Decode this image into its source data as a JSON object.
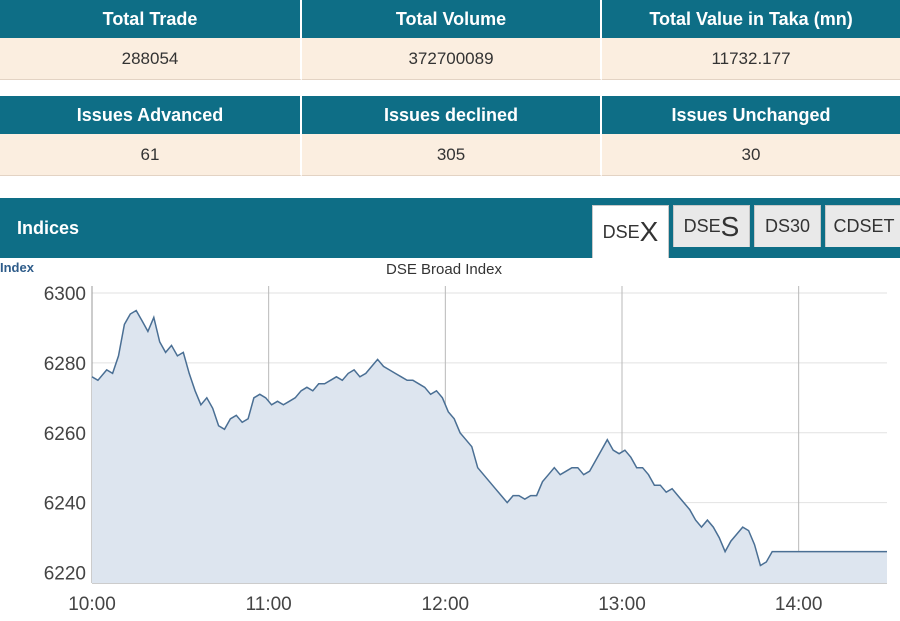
{
  "summary1": {
    "headers": [
      "Total Trade",
      "Total Volume",
      "Total Value in Taka (mn)"
    ],
    "values": [
      "288054",
      "372700089",
      "11732.177"
    ]
  },
  "summary2": {
    "headers": [
      "Issues Advanced",
      "Issues declined",
      "Issues Unchanged"
    ],
    "values": [
      "61",
      "305",
      "30"
    ]
  },
  "indices": {
    "title": "Indices",
    "tabs": [
      {
        "prefix": "DSE",
        "big": "X",
        "active": true
      },
      {
        "prefix": "DSE",
        "big": "S",
        "active": false
      },
      {
        "prefix": "DS30",
        "big": "",
        "active": false
      },
      {
        "prefix": "CDSET",
        "big": "",
        "active": false
      }
    ]
  },
  "colors": {
    "header_bg": "#0e6e86",
    "value_bg": "#fbeee0",
    "line": "#4a6f94",
    "area": "#dde5ef"
  },
  "chart_data": {
    "type": "area",
    "title": "DSE Broad Index",
    "ylabel": "Index",
    "ylim": [
      6217,
      6302
    ],
    "yticks": [
      6220,
      6240,
      6260,
      6280,
      6300
    ],
    "xlim": [
      600,
      870
    ],
    "xticks": [
      600,
      660,
      720,
      780,
      840
    ],
    "xtick_labels": [
      "10:00",
      "11:00",
      "12:00",
      "13:00",
      "14:00"
    ],
    "grid": true,
    "series": [
      {
        "x": [
          600,
          602,
          605,
          607,
          609,
          611,
          613,
          615,
          617,
          619,
          621,
          623,
          625,
          627,
          629,
          631,
          633,
          635,
          637,
          639,
          641,
          643,
          645,
          647,
          649,
          651,
          653,
          655,
          657,
          659,
          661,
          663,
          665,
          667,
          669,
          671,
          673,
          675,
          677,
          679,
          681,
          683,
          685,
          687,
          689,
          691,
          693,
          695,
          697,
          699,
          701,
          703,
          705,
          707,
          709,
          711,
          713,
          715,
          717,
          719,
          721,
          723,
          725,
          727,
          729,
          731,
          733,
          735,
          737,
          739,
          741,
          743,
          745,
          747,
          749,
          751,
          753,
          755,
          757,
          759,
          761,
          763,
          765,
          767,
          769,
          771,
          773,
          775,
          777,
          779,
          781,
          783,
          785,
          787,
          789,
          791,
          793,
          795,
          797,
          799,
          801,
          803,
          805,
          807,
          809,
          811,
          813,
          815,
          817,
          819,
          821,
          823,
          825,
          827,
          829,
          831,
          833,
          835,
          837,
          839,
          841,
          843,
          845,
          847,
          849,
          851,
          853,
          855,
          857,
          859,
          861,
          863,
          865,
          867,
          870
        ],
        "values": [
          6276,
          6275,
          6278,
          6277,
          6282,
          6291,
          6294,
          6295,
          6292,
          6289,
          6293,
          6286,
          6283,
          6285,
          6282,
          6283,
          6277,
          6272,
          6268,
          6270,
          6267,
          6262,
          6261,
          6264,
          6265,
          6263,
          6264,
          6270,
          6271,
          6270,
          6268,
          6269,
          6268,
          6269,
          6270,
          6272,
          6273,
          6272,
          6274,
          6274,
          6275,
          6276,
          6275,
          6277,
          6278,
          6276,
          6277,
          6279,
          6281,
          6279,
          6278,
          6277,
          6276,
          6275,
          6275,
          6274,
          6273,
          6271,
          6272,
          6270,
          6266,
          6264,
          6260,
          6258,
          6256,
          6250,
          6248,
          6246,
          6244,
          6242,
          6240,
          6242,
          6242,
          6241,
          6242,
          6242,
          6246,
          6248,
          6250,
          6248,
          6249,
          6250,
          6250,
          6248,
          6249,
          6252,
          6255,
          6258,
          6255,
          6254,
          6255,
          6253,
          6250,
          6250,
          6248,
          6245,
          6245,
          6243,
          6244,
          6242,
          6240,
          6238,
          6235,
          6233,
          6235,
          6233,
          6230,
          6226,
          6229,
          6231,
          6233,
          6232,
          6228,
          6222,
          6223,
          6226,
          6226,
          6226,
          6226,
          6226,
          6226,
          6226,
          6226,
          6226,
          6226,
          6226,
          6226,
          6226,
          6226,
          6226,
          6226,
          6226,
          6226,
          6226,
          6226
        ]
      }
    ]
  }
}
